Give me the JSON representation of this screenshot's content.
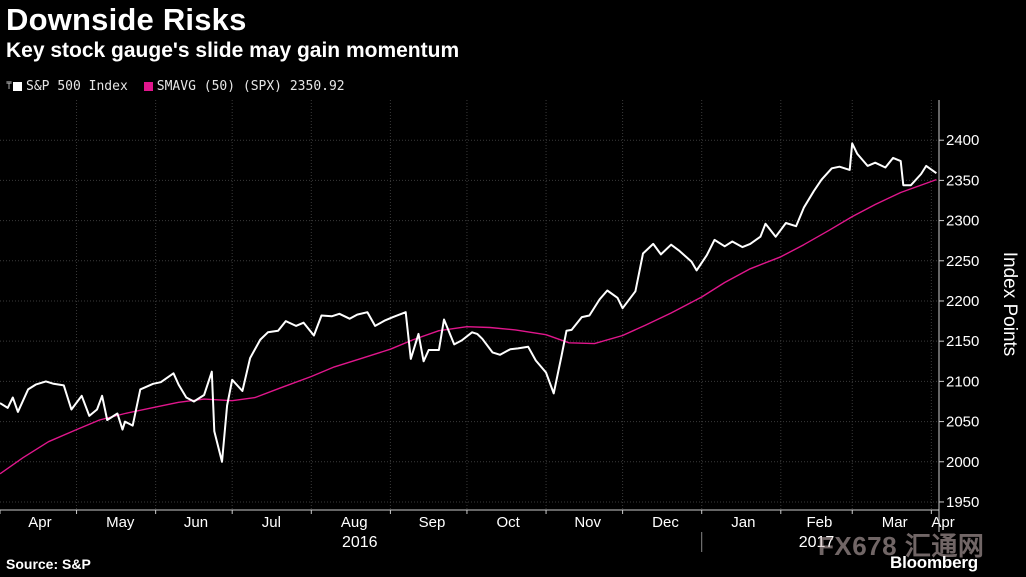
{
  "header": {
    "title": "Downside Risks",
    "subtitle": "Key stock gauge's slide may gain momentum"
  },
  "legend": {
    "items": [
      {
        "label": "S&P 500 Index",
        "color": "#ffffff"
      },
      {
        "label": "SMAVG (50) (SPX) 2350.92",
        "color": "#e0168c"
      }
    ]
  },
  "footer": {
    "source": "Source: S&P",
    "brand": "Bloomberg",
    "watermark": "FX678 汇通网"
  },
  "chart_data": {
    "type": "line",
    "title": "Downside Risks",
    "subtitle": "Key stock gauge's slide may gain momentum",
    "ylabel": "Index Points",
    "ylim": [
      1940,
      2450
    ],
    "yticks": [
      1950,
      2000,
      2050,
      2100,
      2150,
      2200,
      2250,
      2300,
      2350,
      2400
    ],
    "xlim": [
      "2016-04-01",
      "2017-04-04"
    ],
    "month_labels": [
      "Apr",
      "May",
      "Jun",
      "Jul",
      "Aug",
      "Sep",
      "Oct",
      "Nov",
      "Dec",
      "Jan",
      "Feb",
      "Mar",
      "Apr"
    ],
    "month_dates": [
      "2016-04-01",
      "2016-05-01",
      "2016-06-01",
      "2016-07-01",
      "2016-08-01",
      "2016-09-01",
      "2016-10-01",
      "2016-11-01",
      "2016-12-01",
      "2017-01-01",
      "2017-02-01",
      "2017-03-01",
      "2017-04-01"
    ],
    "year_labels": [
      {
        "label": "2016",
        "date": "2016-08-20"
      },
      {
        "label": "2017",
        "date": "2017-02-15"
      }
    ],
    "year_divider": "2017-01-01",
    "grid": true,
    "legend_position": "top-left",
    "series": [
      {
        "name": "S&P 500 Index",
        "color": "#ffffff",
        "points": [
          [
            "2016-04-01",
            2073
          ],
          [
            "2016-04-04",
            2067
          ],
          [
            "2016-04-06",
            2080
          ],
          [
            "2016-04-08",
            2062
          ],
          [
            "2016-04-12",
            2090
          ],
          [
            "2016-04-15",
            2096
          ],
          [
            "2016-04-19",
            2100
          ],
          [
            "2016-04-22",
            2097
          ],
          [
            "2016-04-26",
            2095
          ],
          [
            "2016-04-29",
            2065
          ],
          [
            "2016-05-03",
            2082
          ],
          [
            "2016-05-06",
            2057
          ],
          [
            "2016-05-09",
            2065
          ],
          [
            "2016-05-11",
            2082
          ],
          [
            "2016-05-13",
            2052
          ],
          [
            "2016-05-17",
            2060
          ],
          [
            "2016-05-19",
            2040
          ],
          [
            "2016-05-20",
            2050
          ],
          [
            "2016-05-23",
            2045
          ],
          [
            "2016-05-26",
            2090
          ],
          [
            "2016-05-31",
            2097
          ],
          [
            "2016-06-03",
            2099
          ],
          [
            "2016-06-08",
            2110
          ],
          [
            "2016-06-10",
            2096
          ],
          [
            "2016-06-13",
            2080
          ],
          [
            "2016-06-16",
            2075
          ],
          [
            "2016-06-20",
            2083
          ],
          [
            "2016-06-23",
            2112
          ],
          [
            "2016-06-24",
            2038
          ],
          [
            "2016-06-27",
            2000
          ],
          [
            "2016-06-29",
            2070
          ],
          [
            "2016-07-01",
            2102
          ],
          [
            "2016-07-05",
            2088
          ],
          [
            "2016-07-08",
            2129
          ],
          [
            "2016-07-12",
            2152
          ],
          [
            "2016-07-15",
            2161
          ],
          [
            "2016-07-19",
            2163
          ],
          [
            "2016-07-22",
            2175
          ],
          [
            "2016-07-26",
            2169
          ],
          [
            "2016-07-29",
            2173
          ],
          [
            "2016-08-02",
            2157
          ],
          [
            "2016-08-05",
            2182
          ],
          [
            "2016-08-09",
            2181
          ],
          [
            "2016-08-12",
            2184
          ],
          [
            "2016-08-16",
            2178
          ],
          [
            "2016-08-19",
            2183
          ],
          [
            "2016-08-23",
            2186
          ],
          [
            "2016-08-26",
            2169
          ],
          [
            "2016-08-30",
            2176
          ],
          [
            "2016-09-02",
            2180
          ],
          [
            "2016-09-07",
            2186
          ],
          [
            "2016-09-09",
            2128
          ],
          [
            "2016-09-12",
            2159
          ],
          [
            "2016-09-14",
            2125
          ],
          [
            "2016-09-16",
            2139
          ],
          [
            "2016-09-20",
            2139
          ],
          [
            "2016-09-22",
            2177
          ],
          [
            "2016-09-26",
            2146
          ],
          [
            "2016-09-29",
            2151
          ],
          [
            "2016-10-03",
            2161
          ],
          [
            "2016-10-05",
            2159
          ],
          [
            "2016-10-07",
            2153
          ],
          [
            "2016-10-11",
            2136
          ],
          [
            "2016-10-14",
            2133
          ],
          [
            "2016-10-18",
            2140
          ],
          [
            "2016-10-21",
            2141
          ],
          [
            "2016-10-25",
            2143
          ],
          [
            "2016-10-28",
            2126
          ],
          [
            "2016-11-01",
            2111
          ],
          [
            "2016-11-04",
            2085
          ],
          [
            "2016-11-07",
            2131
          ],
          [
            "2016-11-09",
            2163
          ],
          [
            "2016-11-11",
            2164
          ],
          [
            "2016-11-15",
            2180
          ],
          [
            "2016-11-18",
            2182
          ],
          [
            "2016-11-22",
            2202
          ],
          [
            "2016-11-25",
            2213
          ],
          [
            "2016-11-29",
            2204
          ],
          [
            "2016-12-01",
            2191
          ],
          [
            "2016-12-06",
            2212
          ],
          [
            "2016-12-09",
            2259
          ],
          [
            "2016-12-13",
            2271
          ],
          [
            "2016-12-16",
            2258
          ],
          [
            "2016-12-20",
            2270
          ],
          [
            "2016-12-23",
            2263
          ],
          [
            "2016-12-28",
            2249
          ],
          [
            "2016-12-30",
            2238
          ],
          [
            "2017-01-03",
            2257
          ],
          [
            "2017-01-06",
            2276
          ],
          [
            "2017-01-10",
            2268
          ],
          [
            "2017-01-13",
            2274
          ],
          [
            "2017-01-17",
            2267
          ],
          [
            "2017-01-20",
            2271
          ],
          [
            "2017-01-24",
            2280
          ],
          [
            "2017-01-26",
            2296
          ],
          [
            "2017-01-30",
            2280
          ],
          [
            "2017-02-03",
            2297
          ],
          [
            "2017-02-07",
            2293
          ],
          [
            "2017-02-10",
            2316
          ],
          [
            "2017-02-14",
            2337
          ],
          [
            "2017-02-17",
            2351
          ],
          [
            "2017-02-21",
            2365
          ],
          [
            "2017-02-24",
            2367
          ],
          [
            "2017-02-28",
            2363
          ],
          [
            "2017-03-01",
            2396
          ],
          [
            "2017-03-03",
            2383
          ],
          [
            "2017-03-07",
            2368
          ],
          [
            "2017-03-10",
            2372
          ],
          [
            "2017-03-14",
            2366
          ],
          [
            "2017-03-17",
            2378
          ],
          [
            "2017-03-20",
            2374
          ],
          [
            "2017-03-21",
            2344
          ],
          [
            "2017-03-24",
            2344
          ],
          [
            "2017-03-28",
            2358
          ],
          [
            "2017-03-30",
            2368
          ],
          [
            "2017-04-03",
            2359
          ]
        ]
      },
      {
        "name": "SMAVG (50) (SPX)",
        "color": "#e0168c",
        "points": [
          [
            "2016-04-01",
            1985
          ],
          [
            "2016-04-10",
            2005
          ],
          [
            "2016-04-20",
            2025
          ],
          [
            "2016-05-01",
            2040
          ],
          [
            "2016-05-10",
            2052
          ],
          [
            "2016-05-20",
            2060
          ],
          [
            "2016-06-01",
            2068
          ],
          [
            "2016-06-10",
            2074
          ],
          [
            "2016-06-20",
            2078
          ],
          [
            "2016-07-01",
            2076
          ],
          [
            "2016-07-10",
            2080
          ],
          [
            "2016-07-20",
            2092
          ],
          [
            "2016-08-01",
            2106
          ],
          [
            "2016-08-10",
            2118
          ],
          [
            "2016-08-20",
            2128
          ],
          [
            "2016-09-01",
            2140
          ],
          [
            "2016-09-10",
            2152
          ],
          [
            "2016-09-20",
            2163
          ],
          [
            "2016-10-01",
            2168
          ],
          [
            "2016-10-10",
            2167
          ],
          [
            "2016-10-20",
            2164
          ],
          [
            "2016-11-01",
            2158
          ],
          [
            "2016-11-10",
            2148
          ],
          [
            "2016-11-20",
            2147
          ],
          [
            "2016-12-01",
            2157
          ],
          [
            "2016-12-10",
            2170
          ],
          [
            "2016-12-20",
            2185
          ],
          [
            "2017-01-01",
            2205
          ],
          [
            "2017-01-10",
            2223
          ],
          [
            "2017-01-20",
            2240
          ],
          [
            "2017-02-01",
            2255
          ],
          [
            "2017-02-10",
            2270
          ],
          [
            "2017-02-20",
            2288
          ],
          [
            "2017-03-01",
            2305
          ],
          [
            "2017-03-10",
            2320
          ],
          [
            "2017-03-20",
            2335
          ],
          [
            "2017-04-03",
            2351
          ]
        ]
      }
    ]
  }
}
